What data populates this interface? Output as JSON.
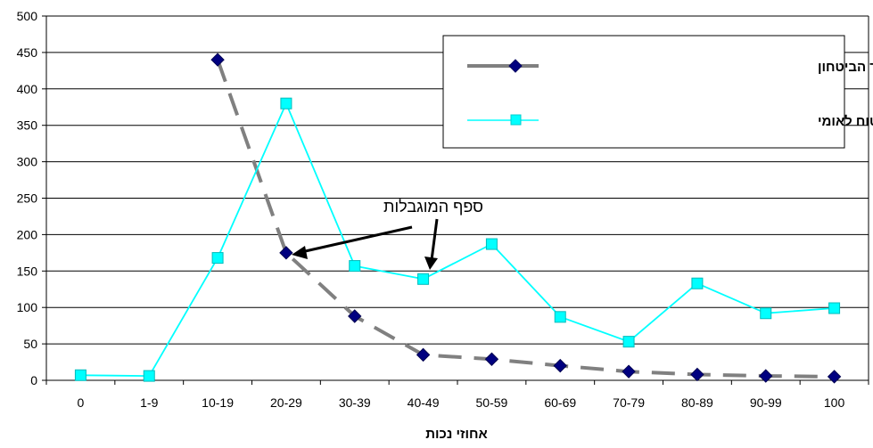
{
  "chart_data": {
    "type": "line",
    "title": "",
    "xlabel": "אחוזי נכות",
    "ylabel": "",
    "categories": [
      "0",
      "1-9",
      "10-19",
      "20-29",
      "30-39",
      "40-49",
      "50-59",
      "60-69",
      "70-79",
      "80-89",
      "90-99",
      "100"
    ],
    "ylim": [
      0,
      500
    ],
    "yticks": [
      0,
      50,
      100,
      150,
      200,
      250,
      300,
      350,
      400,
      450,
      500
    ],
    "grid": "horizontal",
    "legend_position": "top-right",
    "series": [
      {
        "name": "אגף השיקום של משרד הביטחון",
        "color": "#808080",
        "marker_color": "#000080",
        "marker": "diamond",
        "line_style": "dashed",
        "values": [
          null,
          null,
          440,
          175,
          88,
          35,
          29,
          20,
          12,
          8,
          6,
          5
        ]
      },
      {
        "name": "סה\"כ בקבצי המוסד לביטוח לאומי",
        "color": "#00FFFF",
        "marker_color": "#00FFFF",
        "marker": "square",
        "line_style": "solid",
        "values": [
          7,
          6,
          168,
          380,
          157,
          139,
          187,
          87,
          53,
          133,
          92,
          99
        ]
      }
    ],
    "annotations": [
      {
        "text": "ספף המוגבלות",
        "points_to_categories": [
          "20-29",
          "40-49"
        ]
      }
    ]
  }
}
